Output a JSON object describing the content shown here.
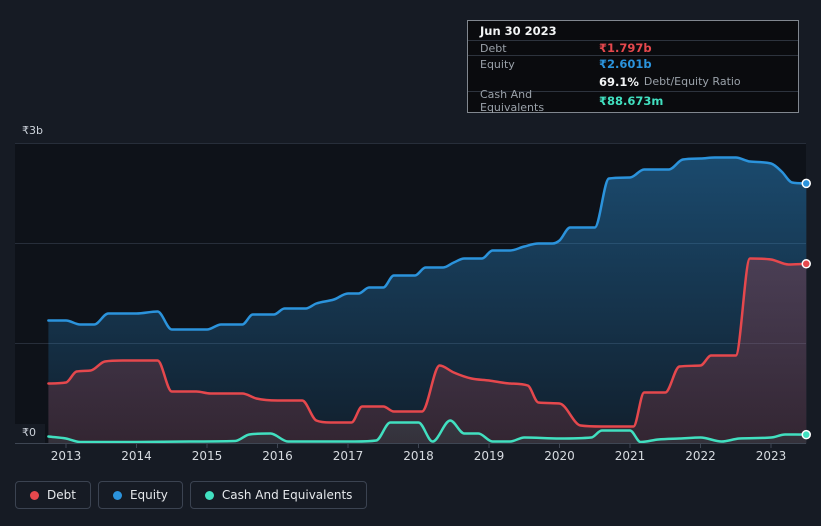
{
  "tooltip": {
    "date": "Jun 30 2023",
    "rows": [
      {
        "label": "Debt",
        "value": "₹1.797b",
        "color": "#e5484d"
      },
      {
        "label": "Equity",
        "value": "₹2.601b",
        "color": "#2b93dc"
      },
      {
        "label": "Cash And Equivalents",
        "value": "₹88.673m",
        "color": "#41e0c0"
      }
    ],
    "ratio_value": "69.1%",
    "ratio_label": "Debt/Equity Ratio"
  },
  "legend": {
    "items": [
      {
        "label": "Debt",
        "color": "#e5484d"
      },
      {
        "label": "Equity",
        "color": "#2b93dc"
      },
      {
        "label": "Cash And Equivalents",
        "color": "#41e0c0"
      }
    ]
  },
  "chart_data": {
    "type": "area",
    "unit": "INR billions",
    "x_domain": [
      2012.75,
      2023.5
    ],
    "y_domain": [
      0,
      3
    ],
    "grid": "horizontal",
    "legend_position": "bottom-left",
    "y_ticks": [
      {
        "label": "₹3b",
        "value": 3
      },
      {
        "label": "₹0",
        "value": 0
      }
    ],
    "x_tick_years": [
      2013,
      2014,
      2015,
      2016,
      2017,
      2018,
      2019,
      2020,
      2021,
      2022,
      2023
    ],
    "series": [
      {
        "name": "Equity",
        "color": "#2b93dc",
        "points": [
          [
            2012.75,
            1.23
          ],
          [
            2013.0,
            1.23
          ],
          [
            2013.2,
            1.19
          ],
          [
            2013.4,
            1.19
          ],
          [
            2013.6,
            1.3
          ],
          [
            2014.0,
            1.3
          ],
          [
            2014.3,
            1.32
          ],
          [
            2014.5,
            1.14
          ],
          [
            2015.0,
            1.14
          ],
          [
            2015.2,
            1.19
          ],
          [
            2015.5,
            1.19
          ],
          [
            2015.65,
            1.29
          ],
          [
            2015.95,
            1.29
          ],
          [
            2016.1,
            1.35
          ],
          [
            2016.4,
            1.35
          ],
          [
            2016.55,
            1.4
          ],
          [
            2016.8,
            1.44
          ],
          [
            2017.0,
            1.5
          ],
          [
            2017.15,
            1.5
          ],
          [
            2017.3,
            1.56
          ],
          [
            2017.5,
            1.56
          ],
          [
            2017.65,
            1.68
          ],
          [
            2017.95,
            1.68
          ],
          [
            2018.1,
            1.76
          ],
          [
            2018.35,
            1.76
          ],
          [
            2018.5,
            1.81
          ],
          [
            2018.65,
            1.85
          ],
          [
            2018.9,
            1.85
          ],
          [
            2019.05,
            1.93
          ],
          [
            2019.3,
            1.93
          ],
          [
            2019.5,
            1.97
          ],
          [
            2019.7,
            2.0
          ],
          [
            2019.9,
            2.0
          ],
          [
            2020.0,
            2.03
          ],
          [
            2020.15,
            2.16
          ],
          [
            2020.5,
            2.16
          ],
          [
            2020.7,
            2.65
          ],
          [
            2021.0,
            2.66
          ],
          [
            2021.2,
            2.74
          ],
          [
            2021.55,
            2.74
          ],
          [
            2021.75,
            2.84
          ],
          [
            2022.0,
            2.85
          ],
          [
            2022.2,
            2.86
          ],
          [
            2022.5,
            2.86
          ],
          [
            2022.7,
            2.82
          ],
          [
            2023.0,
            2.8
          ],
          [
            2023.15,
            2.72
          ],
          [
            2023.3,
            2.61
          ],
          [
            2023.5,
            2.601
          ]
        ]
      },
      {
        "name": "Debt",
        "color": "#e5484d",
        "points": [
          [
            2012.75,
            0.6
          ],
          [
            2013.0,
            0.61
          ],
          [
            2013.15,
            0.72
          ],
          [
            2013.35,
            0.73
          ],
          [
            2013.55,
            0.82
          ],
          [
            2013.8,
            0.83
          ],
          [
            2014.3,
            0.83
          ],
          [
            2014.5,
            0.52
          ],
          [
            2014.85,
            0.52
          ],
          [
            2015.05,
            0.5
          ],
          [
            2015.5,
            0.5
          ],
          [
            2015.7,
            0.45
          ],
          [
            2016.0,
            0.43
          ],
          [
            2016.35,
            0.43
          ],
          [
            2016.55,
            0.23
          ],
          [
            2016.75,
            0.21
          ],
          [
            2017.05,
            0.21
          ],
          [
            2017.2,
            0.37
          ],
          [
            2017.5,
            0.37
          ],
          [
            2017.65,
            0.32
          ],
          [
            2018.05,
            0.32
          ],
          [
            2018.3,
            0.78
          ],
          [
            2018.5,
            0.71
          ],
          [
            2018.75,
            0.65
          ],
          [
            2019.0,
            0.63
          ],
          [
            2019.3,
            0.6
          ],
          [
            2019.55,
            0.58
          ],
          [
            2019.7,
            0.41
          ],
          [
            2020.0,
            0.4
          ],
          [
            2020.3,
            0.18
          ],
          [
            2020.6,
            0.17
          ],
          [
            2021.05,
            0.17
          ],
          [
            2021.2,
            0.51
          ],
          [
            2021.5,
            0.51
          ],
          [
            2021.7,
            0.77
          ],
          [
            2022.0,
            0.78
          ],
          [
            2022.15,
            0.88
          ],
          [
            2022.5,
            0.88
          ],
          [
            2022.7,
            1.85
          ],
          [
            2023.0,
            1.84
          ],
          [
            2023.25,
            1.79
          ],
          [
            2023.5,
            1.797
          ]
        ]
      },
      {
        "name": "Cash And Equivalents",
        "color": "#41e0c0",
        "points": [
          [
            2012.75,
            0.07
          ],
          [
            2013.0,
            0.05
          ],
          [
            2013.2,
            0.015
          ],
          [
            2014.0,
            0.015
          ],
          [
            2014.75,
            0.02
          ],
          [
            2015.4,
            0.025
          ],
          [
            2015.6,
            0.09
          ],
          [
            2015.9,
            0.1
          ],
          [
            2016.15,
            0.02
          ],
          [
            2017.1,
            0.02
          ],
          [
            2017.4,
            0.03
          ],
          [
            2017.6,
            0.21
          ],
          [
            2018.0,
            0.21
          ],
          [
            2018.2,
            0.02
          ],
          [
            2018.45,
            0.23
          ],
          [
            2018.65,
            0.1
          ],
          [
            2018.85,
            0.1
          ],
          [
            2019.05,
            0.02
          ],
          [
            2019.3,
            0.02
          ],
          [
            2019.5,
            0.06
          ],
          [
            2020.0,
            0.05
          ],
          [
            2020.45,
            0.06
          ],
          [
            2020.6,
            0.13
          ],
          [
            2021.0,
            0.13
          ],
          [
            2021.15,
            0.015
          ],
          [
            2021.4,
            0.04
          ],
          [
            2021.7,
            0.05
          ],
          [
            2022.0,
            0.06
          ],
          [
            2022.3,
            0.02
          ],
          [
            2022.55,
            0.05
          ],
          [
            2023.0,
            0.06
          ],
          [
            2023.2,
            0.09
          ],
          [
            2023.5,
            0.0886
          ]
        ]
      }
    ]
  }
}
